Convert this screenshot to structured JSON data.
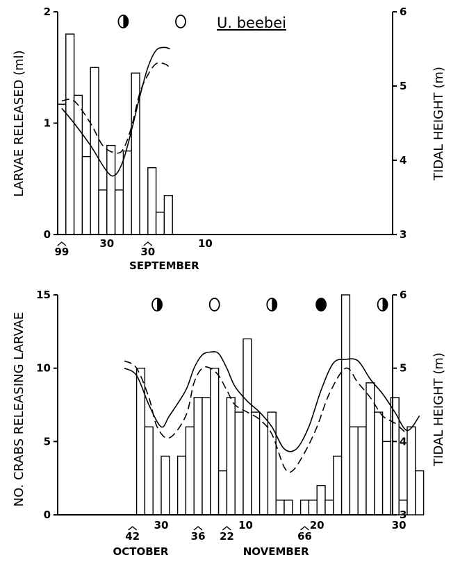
{
  "chart_data": [
    {
      "type": "bar",
      "species_label": "U. beebei",
      "ylabel_left": "LARVAE RELEASED (ml)",
      "ylabel_right": "TIDAL HEIGHT (m)",
      "ylim_left": [
        0,
        2
      ],
      "ylim_right": [
        3,
        6
      ],
      "yticks_left": [
        "0",
        "1",
        "2"
      ],
      "yticks_right": [
        "3",
        "4",
        "5",
        "6"
      ],
      "x_range": [
        0,
        40
      ],
      "xtick_labels": [
        {
          "x": 0.5,
          "label": "99",
          "note": true
        },
        {
          "x": 6,
          "label": "30",
          "note": false
        },
        {
          "x": 11,
          "label": "30",
          "note": true
        },
        {
          "x": 18,
          "label": "10",
          "note": false
        }
      ],
      "month_labels": [
        {
          "x": 13,
          "label": "SEPTEMBER"
        }
      ],
      "moon_phases": [
        {
          "x": 8,
          "phase": "quarter"
        },
        {
          "x": 15,
          "phase": "full"
        }
      ],
      "bars": [
        {
          "x": 0.5,
          "value": 1.17
        },
        {
          "x": 1.5,
          "value": 1.8
        },
        {
          "x": 2.5,
          "value": 1.25
        },
        {
          "x": 3.5,
          "value": 0.7
        },
        {
          "x": 4.5,
          "value": 1.5
        },
        {
          "x": 5.5,
          "value": 0.4
        },
        {
          "x": 6.5,
          "value": 0.8
        },
        {
          "x": 7.5,
          "value": 0.4
        },
        {
          "x": 8.5,
          "value": 0.75
        },
        {
          "x": 9.5,
          "value": 1.45
        },
        {
          "x": 11.5,
          "value": 0.6
        },
        {
          "x": 12.5,
          "value": 0.2
        },
        {
          "x": 13.5,
          "value": 0.35
        }
      ],
      "series": [
        {
          "style": "solid",
          "x": [
            0.5,
            2,
            4,
            6,
            7,
            8,
            9,
            10,
            11,
            12,
            13,
            13.7
          ],
          "tide": [
            4.7,
            4.5,
            4.2,
            3.85,
            3.8,
            4.0,
            4.4,
            4.85,
            5.25,
            5.48,
            5.52,
            5.5
          ]
        },
        {
          "style": "dashed",
          "x": [
            0.5,
            2,
            4,
            5.5,
            7,
            8,
            9,
            10,
            11,
            12,
            13,
            13.7
          ],
          "tide": [
            4.8,
            4.8,
            4.5,
            4.2,
            4.1,
            4.15,
            4.45,
            4.9,
            5.15,
            5.3,
            5.3,
            5.25
          ]
        }
      ]
    },
    {
      "type": "bar",
      "ylabel_left": "NO. CRABS RELEASING LARVAE",
      "ylabel_right": "TIDAL HEIGHT (m)",
      "ylim_left": [
        0,
        15
      ],
      "ylim_right": [
        3,
        6
      ],
      "yticks_left": [
        "0",
        "5",
        "10",
        "15"
      ],
      "yticks_right": [
        "3",
        "4",
        "5",
        "6"
      ],
      "x_range": [
        0,
        40
      ],
      "xtick_labels": [
        {
          "x": 1.5,
          "label": "42",
          "note": true
        },
        {
          "x": 5,
          "label": "30",
          "note": false
        },
        {
          "x": 9.5,
          "label": "36",
          "note": true
        },
        {
          "x": 13,
          "label": "22",
          "note": true
        },
        {
          "x": 15.3,
          "label": "10",
          "note": false
        },
        {
          "x": 22.5,
          "label": "66",
          "note": true
        },
        {
          "x": 24,
          "label": "20",
          "note": false
        },
        {
          "x": 34,
          "label": "30",
          "note": false
        }
      ],
      "month_labels": [
        {
          "x": 2.5,
          "label": "OCTOBER"
        },
        {
          "x": 19,
          "label": "NOVEMBER"
        }
      ],
      "moon_phases": [
        {
          "x": 4.5,
          "phase": "quarter"
        },
        {
          "x": 11.5,
          "phase": "full"
        },
        {
          "x": 18.5,
          "phase": "quarter"
        },
        {
          "x": 24.5,
          "phase": "new"
        },
        {
          "x": 32,
          "phase": "quarter"
        }
      ],
      "bars": [
        {
          "x": 2.5,
          "value": 10
        },
        {
          "x": 3.5,
          "value": 6
        },
        {
          "x": 5.5,
          "value": 4
        },
        {
          "x": 7.5,
          "value": 4
        },
        {
          "x": 8.5,
          "value": 6
        },
        {
          "x": 9.5,
          "value": 8
        },
        {
          "x": 10.5,
          "value": 8
        },
        {
          "x": 11.5,
          "value": 10
        },
        {
          "x": 12.5,
          "value": 3
        },
        {
          "x": 13.5,
          "value": 8
        },
        {
          "x": 14.5,
          "value": 7
        },
        {
          "x": 15.5,
          "value": 12
        },
        {
          "x": 16.5,
          "value": 7
        },
        {
          "x": 18.5,
          "value": 7
        },
        {
          "x": 19.5,
          "value": 1
        },
        {
          "x": 20.5,
          "value": 1
        },
        {
          "x": 22.5,
          "value": 1
        },
        {
          "x": 23.5,
          "value": 1
        },
        {
          "x": 24.5,
          "value": 2
        },
        {
          "x": 25.5,
          "value": 1
        },
        {
          "x": 26.5,
          "value": 4
        },
        {
          "x": 27.5,
          "value": 15
        },
        {
          "x": 28.5,
          "value": 6
        },
        {
          "x": 29.5,
          "value": 6
        },
        {
          "x": 30.5,
          "value": 9
        },
        {
          "x": 31.5,
          "value": 7
        },
        {
          "x": 32.5,
          "value": 5
        },
        {
          "x": 33.5,
          "value": 8
        },
        {
          "x": 34.5,
          "value": 1
        },
        {
          "x": 35.5,
          "value": 6
        },
        {
          "x": 36.5,
          "value": 3
        }
      ],
      "series": [
        {
          "style": "solid",
          "x": [
            0.5,
            2,
            3.5,
            5,
            6,
            8,
            9,
            10,
            11,
            12,
            13,
            14,
            15.5,
            17,
            18.5,
            20,
            21.5,
            23,
            24.5,
            26,
            27.5,
            29,
            30.5,
            32,
            33.5,
            35,
            36.5
          ],
          "tide": [
            5.0,
            4.9,
            4.5,
            4.2,
            4.35,
            4.7,
            5.0,
            5.18,
            5.22,
            5.2,
            5.0,
            4.75,
            4.55,
            4.4,
            4.2,
            3.9,
            3.9,
            4.2,
            4.7,
            5.07,
            5.12,
            5.1,
            4.85,
            4.65,
            4.4,
            4.15,
            4.35
          ]
        },
        {
          "style": "dashed",
          "x": [
            0.5,
            2,
            3.5,
            4.5,
            6,
            8,
            9,
            10,
            11,
            12,
            13,
            14,
            15.5,
            17,
            18.5,
            20,
            21,
            22.5,
            24,
            25.5,
            27.5,
            29,
            30.5,
            32,
            33.5,
            35
          ],
          "tide": [
            5.1,
            5.0,
            4.6,
            4.2,
            4.05,
            4.35,
            4.8,
            5.0,
            5.0,
            4.9,
            4.7,
            4.5,
            4.4,
            4.3,
            4.1,
            3.65,
            3.6,
            3.85,
            4.2,
            4.65,
            5.0,
            4.8,
            4.6,
            4.35,
            4.25,
            4.1
          ]
        }
      ]
    }
  ]
}
